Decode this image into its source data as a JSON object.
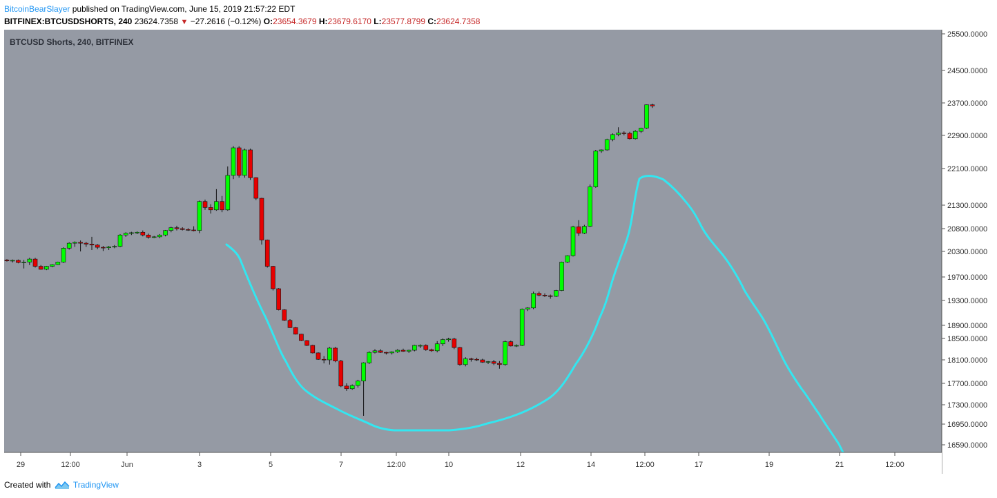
{
  "header": {
    "author": "BitcoinBearSlayer",
    "published_text": "published on TradingView.com, June 15, 2019 21:57:22 EDT",
    "symbol": "BITFINEX:BTCUSDSHORTS, 240",
    "last": "23624.7358",
    "change_arrow": "▼",
    "change": "−27.2616 (−0.12%)",
    "o_label": "O:",
    "o_value": "23654.3679",
    "h_label": "H:",
    "h_value": "23679.6170",
    "l_label": "L:",
    "l_value": "23577.8799",
    "c_label": "C:",
    "c_value": "23624.7358"
  },
  "footer": {
    "created_with": "Created with",
    "brand": "TradingView"
  },
  "colors": {
    "plot_bg": "#959aa4",
    "up": "#00ff00",
    "down": "#e60000",
    "wick": "#111111",
    "annotation": "#33e6f0",
    "axis_bg": "#ffffff"
  },
  "chart_data": {
    "type": "candlestick",
    "title": "BTCUSD Shorts, 240, BITFINEX",
    "y_ticks": [
      25500,
      24500,
      23700,
      22900,
      22100,
      21300,
      20800,
      20300,
      19700,
      19300,
      18900,
      18500,
      18100,
      17700,
      17300,
      16950,
      16590
    ],
    "y_tick_labels": [
      "25500.0000",
      "24500.0000",
      "23700.0000",
      "22900.0000",
      "22100.0000",
      "21300.0000",
      "20800.0000",
      "20300.0000",
      "19700.0000",
      "19300.0000",
      "18900.0000",
      "18500.0000",
      "18100.0000",
      "17700.0000",
      "17300.0000",
      "16950.0000",
      "16590.0000"
    ],
    "x_tick_labels": [
      "29",
      "12:00",
      "Jun",
      "3",
      "5",
      "7",
      "12:00",
      "10",
      "12",
      "14",
      "12:00",
      "17",
      "19",
      "21",
      "12:00"
    ],
    "candles": [
      [
        20100,
        20120,
        20060,
        20080
      ],
      [
        20080,
        20110,
        20040,
        20090
      ],
      [
        20090,
        20110,
        20020,
        20040
      ],
      [
        20040,
        20100,
        19900,
        20050
      ],
      [
        20050,
        20150,
        19980,
        20120
      ],
      [
        20120,
        20150,
        19920,
        19950
      ],
      [
        19950,
        19980,
        19870,
        19880
      ],
      [
        19880,
        19960,
        19860,
        19950
      ],
      [
        19950,
        20000,
        19930,
        19990
      ],
      [
        19990,
        20060,
        19980,
        20050
      ],
      [
        20050,
        20390,
        20030,
        20370
      ],
      [
        20370,
        20500,
        20340,
        20480
      ],
      [
        20480,
        20520,
        20400,
        20500
      ],
      [
        20500,
        20540,
        20300,
        20480
      ],
      [
        20480,
        20510,
        20400,
        20460
      ],
      [
        20460,
        20620,
        20330,
        20440
      ],
      [
        20440,
        20460,
        20350,
        20390
      ],
      [
        20390,
        20420,
        20310,
        20380
      ],
      [
        20380,
        20420,
        20330,
        20400
      ],
      [
        20400,
        20440,
        20370,
        20410
      ],
      [
        20410,
        20680,
        20390,
        20660
      ],
      [
        20660,
        20720,
        20620,
        20700
      ],
      [
        20700,
        20730,
        20660,
        20710
      ],
      [
        20710,
        20740,
        20680,
        20720
      ],
      [
        20720,
        20760,
        20630,
        20660
      ],
      [
        20660,
        20690,
        20580,
        20610
      ],
      [
        20610,
        20640,
        20590,
        20620
      ],
      [
        20620,
        20680,
        20590,
        20660
      ],
      [
        20660,
        20770,
        20630,
        20760
      ],
      [
        20760,
        20840,
        20720,
        20820
      ],
      [
        20820,
        20860,
        20760,
        20800
      ],
      [
        20800,
        20830,
        20760,
        20780
      ],
      [
        20780,
        20810,
        20750,
        20770
      ],
      [
        20770,
        20850,
        20740,
        20760
      ],
      [
        20760,
        21400,
        20700,
        21380
      ],
      [
        21380,
        21420,
        21200,
        21250
      ],
      [
        21250,
        21320,
        21120,
        21200
      ],
      [
        21200,
        21650,
        21180,
        21380
      ],
      [
        21380,
        21500,
        21150,
        21200
      ],
      [
        21200,
        22150,
        21180,
        21950
      ],
      [
        21950,
        22640,
        21870,
        22600
      ],
      [
        22600,
        22640,
        21900,
        21950
      ],
      [
        21950,
        22580,
        21900,
        22550
      ],
      [
        22550,
        22580,
        21850,
        21900
      ],
      [
        21900,
        21910,
        21410,
        21450
      ],
      [
        21450,
        21460,
        20450,
        20550
      ],
      [
        20550,
        20560,
        19920,
        19950
      ],
      [
        19950,
        19960,
        19470,
        19500
      ],
      [
        19500,
        19510,
        19140,
        19150
      ],
      [
        19150,
        19160,
        18970,
        18980
      ],
      [
        18980,
        19000,
        18820,
        18830
      ],
      [
        18830,
        18850,
        18620,
        18630
      ],
      [
        18630,
        18640,
        18450,
        18460
      ],
      [
        18460,
        18470,
        18360,
        18370
      ],
      [
        18370,
        18380,
        18220,
        18230
      ],
      [
        18230,
        18240,
        18100,
        18110
      ],
      [
        18110,
        18170,
        18040,
        18100
      ],
      [
        18100,
        18340,
        18020,
        18320
      ],
      [
        18320,
        18340,
        18060,
        18080
      ],
      [
        18080,
        18100,
        17630,
        17650
      ],
      [
        17650,
        17700,
        17560,
        17600
      ],
      [
        17600,
        17680,
        17580,
        17660
      ],
      [
        17660,
        17760,
        17620,
        17740
      ],
      [
        17740,
        18060,
        17100,
        18050
      ],
      [
        18050,
        18260,
        18030,
        18240
      ],
      [
        18240,
        18300,
        18220,
        18270
      ],
      [
        18270,
        18300,
        18230,
        18240
      ],
      [
        18240,
        18250,
        18200,
        18230
      ],
      [
        18230,
        18260,
        18200,
        18250
      ],
      [
        18250,
        18300,
        18230,
        18280
      ],
      [
        18280,
        18310,
        18250,
        18260
      ],
      [
        18260,
        18290,
        18230,
        18280
      ],
      [
        18280,
        18380,
        18260,
        18370
      ],
      [
        18370,
        18390,
        18320,
        18370
      ],
      [
        18370,
        18390,
        18270,
        18290
      ],
      [
        18290,
        18310,
        18250,
        18270
      ],
      [
        18270,
        18450,
        18240,
        18400
      ],
      [
        18400,
        18500,
        18360,
        18480
      ],
      [
        18480,
        18520,
        18440,
        18490
      ],
      [
        18490,
        18520,
        18300,
        18330
      ],
      [
        18330,
        18340,
        18000,
        18020
      ],
      [
        18020,
        18150,
        17990,
        18120
      ],
      [
        18120,
        18140,
        18070,
        18110
      ],
      [
        18110,
        18140,
        18080,
        18100
      ],
      [
        18100,
        18120,
        18050,
        18060
      ],
      [
        18060,
        18080,
        18030,
        18070
      ],
      [
        18070,
        18100,
        18010,
        18040
      ],
      [
        18040,
        18080,
        17950,
        18020
      ],
      [
        18020,
        18460,
        18000,
        18440
      ],
      [
        18440,
        18460,
        18350,
        18360
      ],
      [
        18360,
        18390,
        18340,
        18370
      ],
      [
        18370,
        19170,
        18360,
        19160
      ],
      [
        19160,
        19190,
        19130,
        19180
      ],
      [
        19180,
        19450,
        19160,
        19420
      ],
      [
        19420,
        19450,
        19370,
        19390
      ],
      [
        19390,
        19420,
        19360,
        19380
      ],
      [
        19380,
        19400,
        19330,
        19370
      ],
      [
        19370,
        19480,
        19360,
        19470
      ],
      [
        19470,
        20060,
        19460,
        20050
      ],
      [
        20050,
        20210,
        20030,
        20200
      ],
      [
        20200,
        20860,
        20180,
        20840
      ],
      [
        20840,
        20980,
        20640,
        20700
      ],
      [
        20700,
        20880,
        20680,
        20850
      ],
      [
        20850,
        21750,
        20830,
        21700
      ],
      [
        21700,
        22550,
        21680,
        22520
      ],
      [
        22520,
        22560,
        22480,
        22550
      ],
      [
        22550,
        22820,
        22530,
        22800
      ],
      [
        22800,
        22950,
        22760,
        22920
      ],
      [
        22920,
        23100,
        22880,
        22960
      ],
      [
        22960,
        23000,
        22900,
        22950
      ],
      [
        22950,
        22990,
        22800,
        22820
      ],
      [
        22820,
        23030,
        22800,
        23000
      ],
      [
        23000,
        23090,
        22960,
        23080
      ],
      [
        23080,
        23660,
        23060,
        23654
      ],
      [
        23654,
        23680,
        23578,
        23625
      ]
    ]
  }
}
